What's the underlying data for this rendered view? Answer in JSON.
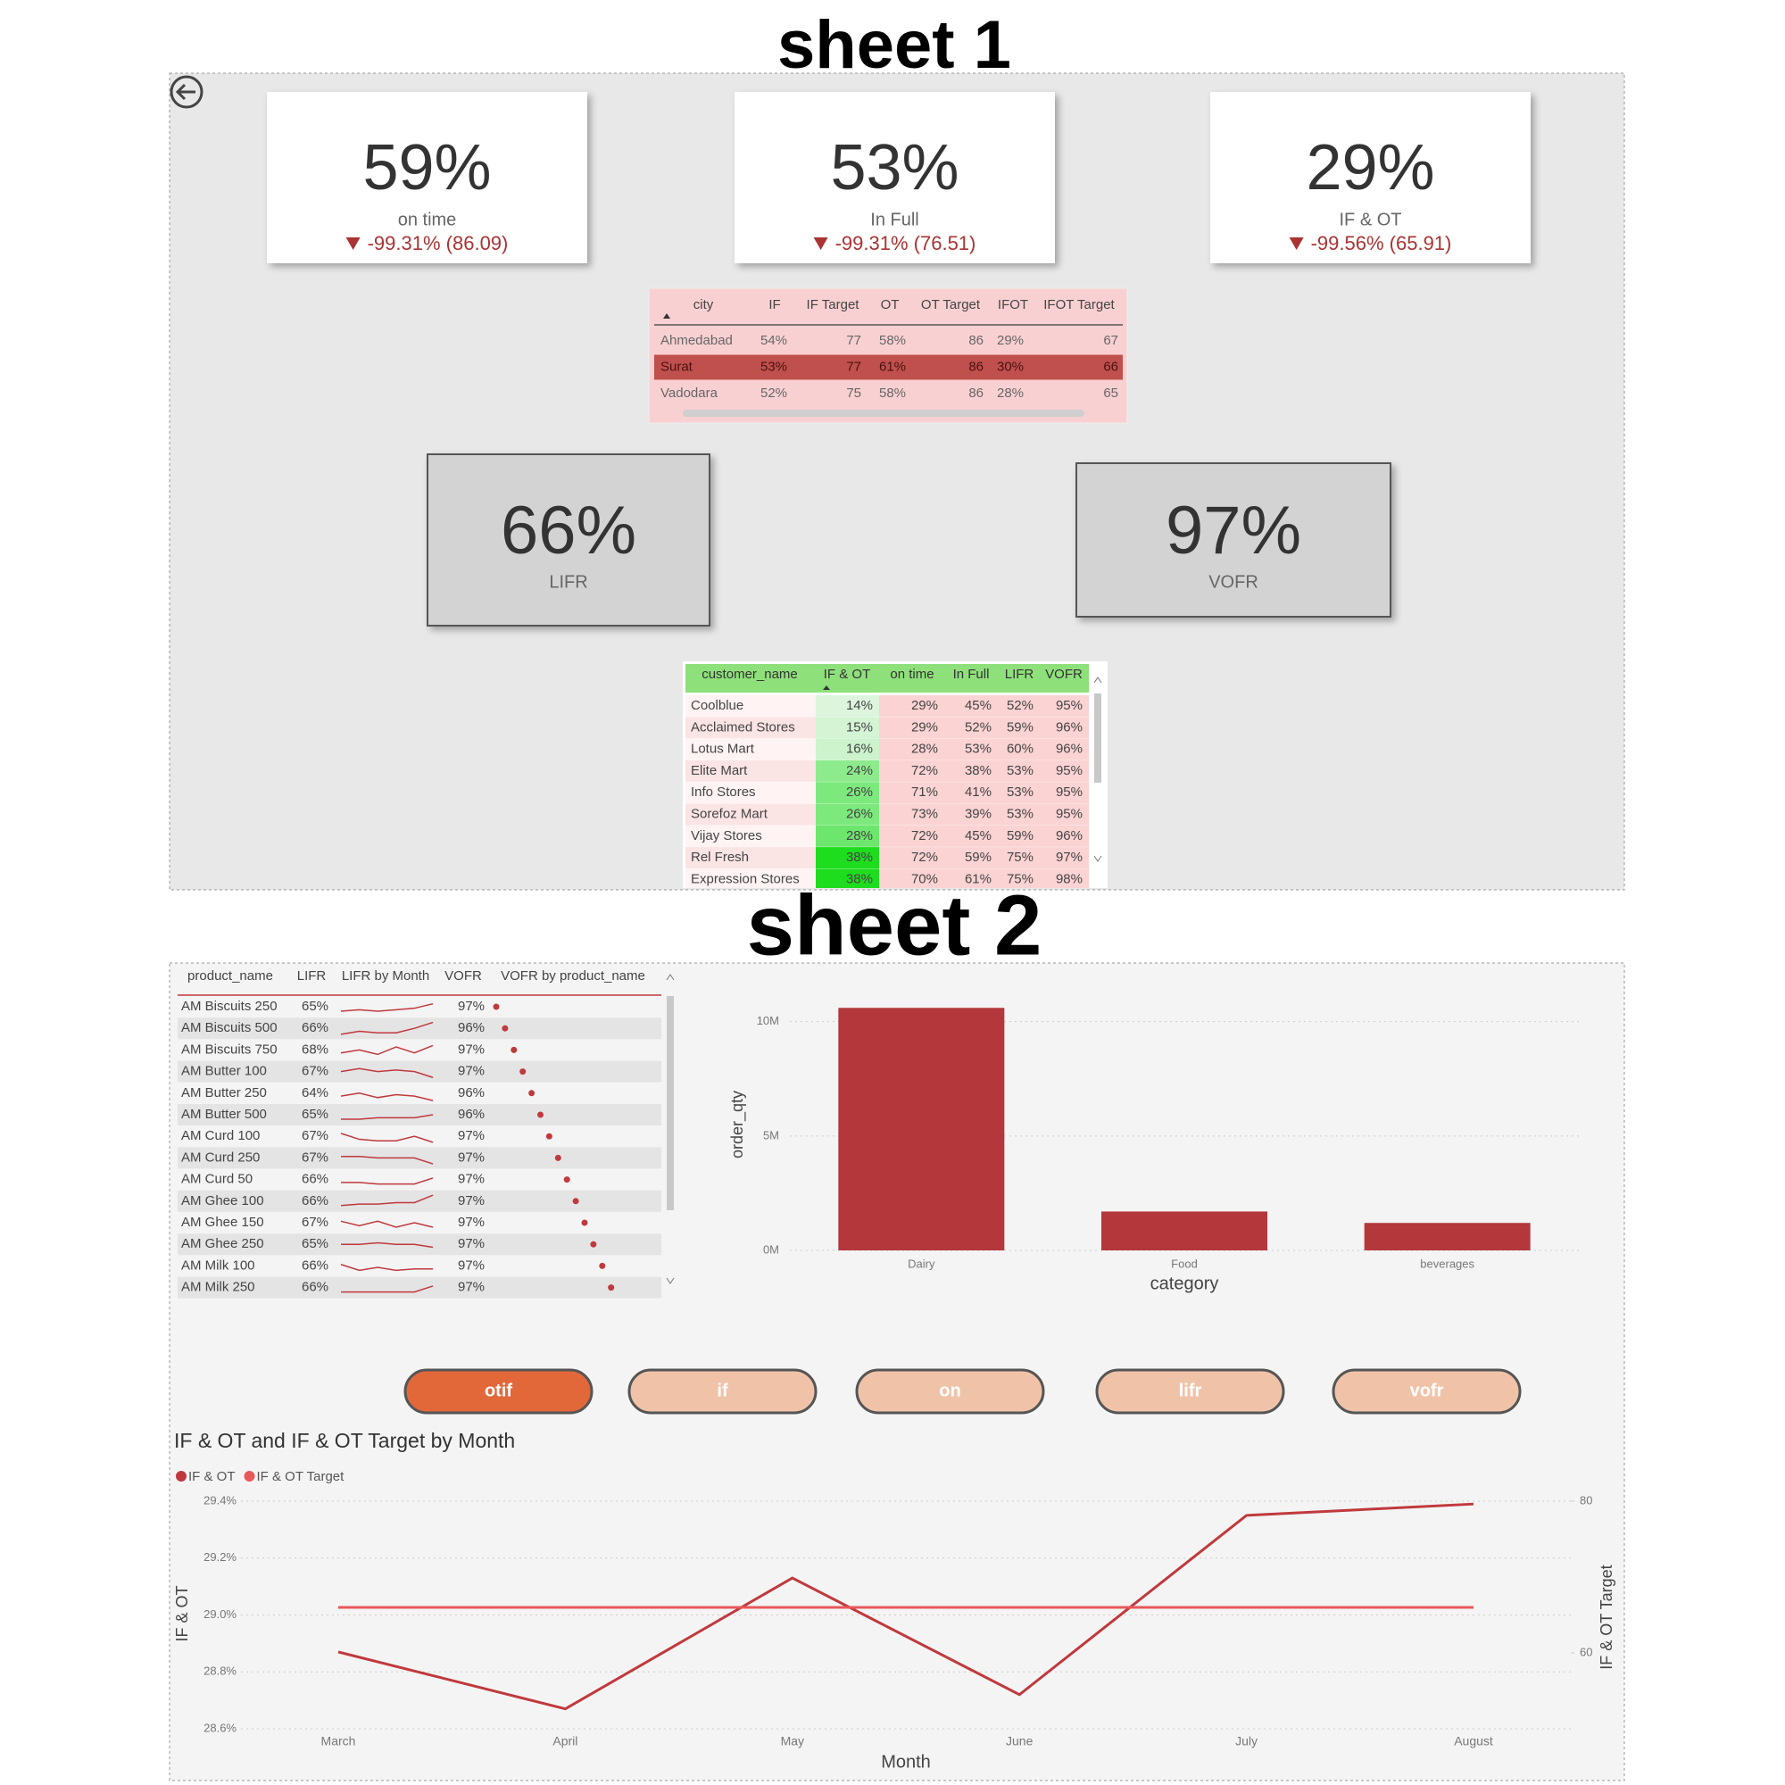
{
  "sheet1": {
    "title": "sheet 1",
    "kpis": [
      {
        "value": "59%",
        "label": "on time",
        "delta": "-99.31% (86.09)"
      },
      {
        "value": "53%",
        "label": "In Full",
        "delta": "-99.31% (76.51)"
      },
      {
        "value": "29%",
        "label": "IF & OT",
        "delta": "-99.56% (65.91)"
      }
    ],
    "city_table": {
      "columns": [
        "city",
        "IF",
        "IF Target",
        "OT",
        "OT Target",
        "IFOT",
        "IFOT Target"
      ],
      "rows": [
        [
          "Ahmedabad",
          "54%",
          "77",
          "58%",
          "86",
          "29%",
          "67"
        ],
        [
          "Surat",
          "53%",
          "77",
          "61%",
          "86",
          "30%",
          "66"
        ],
        [
          "Vadodara",
          "52%",
          "75",
          "58%",
          "86",
          "28%",
          "65"
        ]
      ]
    },
    "cards": [
      {
        "value": "66%",
        "label": "LIFR"
      },
      {
        "value": "97%",
        "label": "VOFR"
      }
    ],
    "customer_table": {
      "columns": [
        "customer_name",
        "IF & OT",
        "on time",
        "In Full",
        "LIFR",
        "VOFR"
      ],
      "rows": [
        [
          "Coolblue",
          "14%",
          "29%",
          "45%",
          "52%",
          "95%"
        ],
        [
          "Acclaimed Stores",
          "15%",
          "29%",
          "52%",
          "59%",
          "96%"
        ],
        [
          "Lotus Mart",
          "16%",
          "28%",
          "53%",
          "60%",
          "96%"
        ],
        [
          "Elite Mart",
          "24%",
          "72%",
          "38%",
          "53%",
          "95%"
        ],
        [
          "Info Stores",
          "26%",
          "71%",
          "41%",
          "53%",
          "95%"
        ],
        [
          "Sorefoz Mart",
          "26%",
          "73%",
          "39%",
          "53%",
          "95%"
        ],
        [
          "Vijay Stores",
          "28%",
          "72%",
          "45%",
          "59%",
          "96%"
        ],
        [
          "Rel Fresh",
          "38%",
          "72%",
          "59%",
          "75%",
          "97%"
        ],
        [
          "Expression Stores",
          "38%",
          "70%",
          "61%",
          "75%",
          "98%"
        ]
      ]
    }
  },
  "sheet2": {
    "title": "sheet 2",
    "product_table": {
      "columns": [
        "product_name",
        "LIFR",
        "LIFR by Month",
        "VOFR",
        "VOFR by product_name"
      ],
      "rows": [
        [
          "AM Biscuits 250",
          "65%",
          "97%"
        ],
        [
          "AM Biscuits 500",
          "66%",
          "96%"
        ],
        [
          "AM Biscuits 750",
          "68%",
          "97%"
        ],
        [
          "AM Butter 100",
          "67%",
          "97%"
        ],
        [
          "AM Butter 250",
          "64%",
          "96%"
        ],
        [
          "AM Butter 500",
          "65%",
          "96%"
        ],
        [
          "AM Curd 100",
          "67%",
          "97%"
        ],
        [
          "AM Curd 250",
          "67%",
          "97%"
        ],
        [
          "AM Curd 50",
          "66%",
          "97%"
        ],
        [
          "AM Ghee 100",
          "66%",
          "97%"
        ],
        [
          "AM Ghee 150",
          "67%",
          "97%"
        ],
        [
          "AM Ghee 250",
          "65%",
          "97%"
        ],
        [
          "AM Milk 100",
          "66%",
          "97%"
        ],
        [
          "AM Milk 250",
          "66%",
          "97%"
        ]
      ],
      "lifr_by_month": [
        [
          63,
          64,
          63,
          64,
          65,
          68
        ],
        [
          62,
          64,
          63,
          63,
          66,
          70
        ],
        [
          64,
          66,
          63,
          68,
          64,
          69
        ],
        [
          66,
          68,
          66,
          67,
          66,
          62
        ],
        [
          64,
          66,
          63,
          65,
          64,
          61
        ],
        [
          63,
          63,
          64,
          64,
          64,
          66
        ],
        [
          68,
          64,
          63,
          63,
          66,
          62
        ],
        [
          67,
          67,
          66,
          66,
          66,
          62
        ],
        [
          64,
          64,
          63,
          63,
          63,
          67
        ],
        [
          63,
          64,
          64,
          65,
          65,
          70
        ],
        [
          67,
          64,
          67,
          63,
          66,
          63
        ],
        [
          66,
          66,
          67,
          66,
          66,
          64
        ],
        [
          67,
          63,
          65,
          63,
          64,
          64
        ],
        [
          63,
          63,
          63,
          63,
          63,
          67
        ]
      ]
    },
    "buttons": [
      "otif",
      "if",
      "on",
      "lifr",
      "vofr"
    ]
  },
  "chart_data": [
    {
      "type": "bar",
      "categories": [
        "Dairy",
        "Food",
        "beverages"
      ],
      "values": [
        10600000,
        1700000,
        1200000
      ],
      "color": "#b3373b",
      "ylim": [
        0,
        11000000
      ],
      "yticks": [
        {
          "value": 0,
          "label": "0M"
        },
        {
          "value": 5000000,
          "label": "5M"
        },
        {
          "value": 10000000,
          "label": "10M"
        }
      ],
      "x_label": "category",
      "y_label": "order_qty",
      "grid": true
    },
    {
      "type": "line",
      "title": "IF & OT and IF & OT Target by Month",
      "categories": [
        "March",
        "April",
        "May",
        "June",
        "July",
        "August"
      ],
      "series": [
        {
          "name": "IF & OT",
          "color": "#c0393d",
          "values": [
            28.87,
            28.67,
            29.13,
            28.72,
            29.35,
            29.39
          ]
        },
        {
          "name": "IF & OT Target",
          "color": "#e8575a",
          "axis": "y2",
          "values": [
            66,
            66,
            66,
            66,
            66,
            66
          ]
        }
      ],
      "ylim": [
        28.6,
        29.4
      ],
      "yticks": [
        {
          "value": 28.6,
          "label": "28.6%"
        },
        {
          "value": 28.8,
          "label": "28.8%"
        },
        {
          "value": 29.0,
          "label": "29.0%"
        },
        {
          "value": 29.2,
          "label": "29.2%"
        },
        {
          "value": 29.4,
          "label": "29.4%"
        }
      ],
      "y2lim": [
        50,
        80
      ],
      "y2ticks": [
        60,
        80
      ],
      "x_label": "Month",
      "y_label": "IF & OT",
      "y2_label": "IF & OT Target",
      "grid": true
    }
  ]
}
